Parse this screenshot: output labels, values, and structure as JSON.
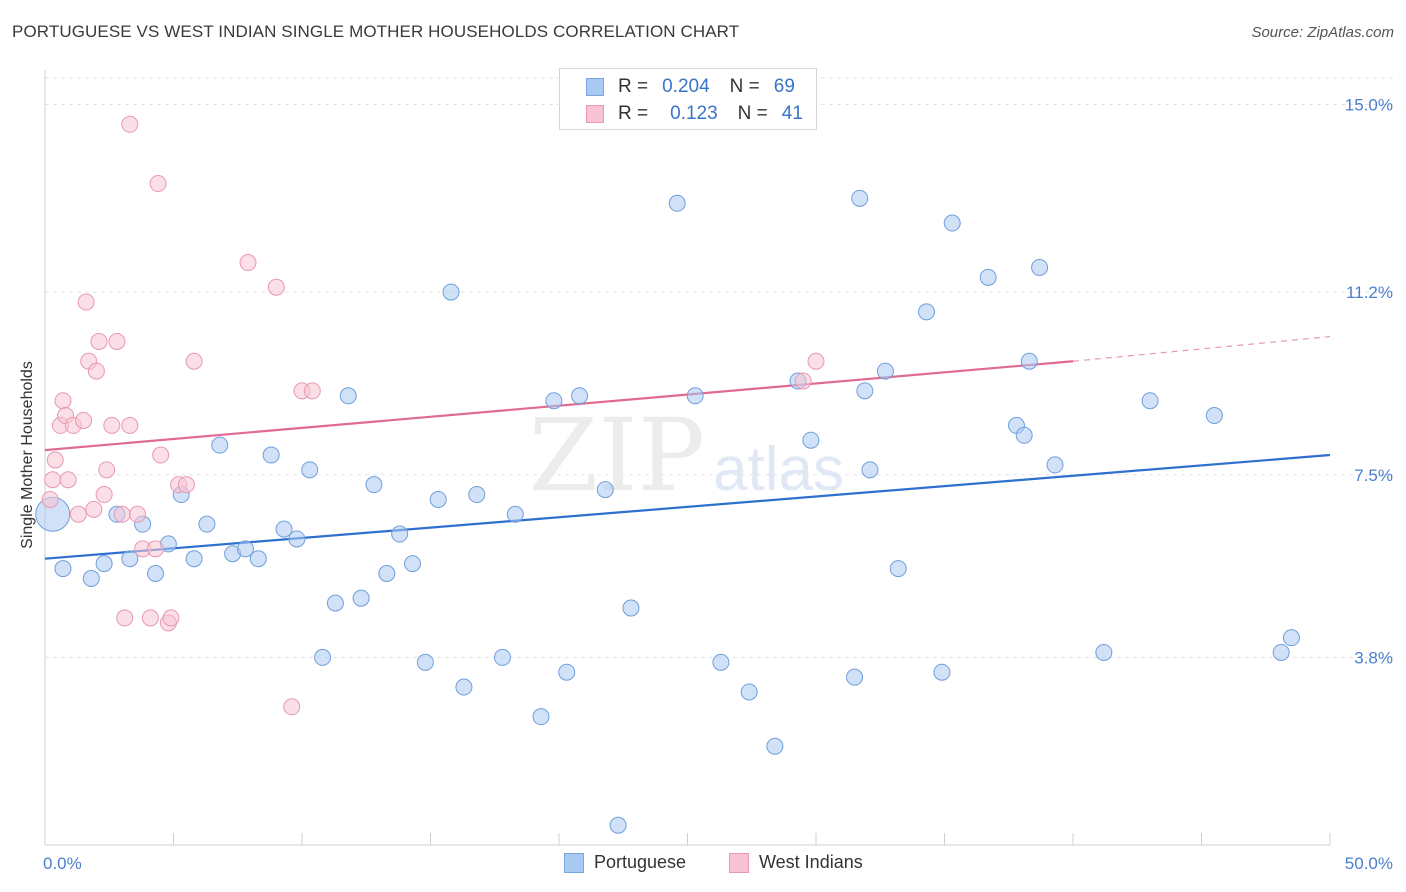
{
  "header": {
    "title": "PORTUGUESE VS WEST INDIAN SINGLE MOTHER HOUSEHOLDS CORRELATION CHART",
    "source": "Source: ZipAtlas.com"
  },
  "watermark": {
    "zip": "ZIP",
    "atlas": "atlas"
  },
  "legend": {
    "rows": [
      {
        "r_label": "R =",
        "r_value": "0.204",
        "n_label": "N =",
        "n_value": "69",
        "color": "#a9c8f2",
        "border": "#7aa6e0"
      },
      {
        "r_label": "R =",
        "r_value": "0.123",
        "n_label": "N =",
        "n_value": "41",
        "color": "#f8c4d3",
        "border": "#e898b0"
      }
    ]
  },
  "bottom_legend": {
    "items": [
      {
        "label": "Portuguese",
        "color": "#a9c8f2",
        "border": "#7aa6e0"
      },
      {
        "label": "West Indians",
        "color": "#f8c4d3",
        "border": "#e898b0"
      }
    ]
  },
  "chart_data": {
    "type": "scatter",
    "title": "PORTUGUESE VS WEST INDIAN SINGLE MOTHER HOUSEHOLDS CORRELATION CHART",
    "xlabel": "",
    "ylabel": "Single Mother Households",
    "xlim": [
      0,
      50
    ],
    "ylim": [
      0,
      15.7
    ],
    "x_tick_labels": [
      "0.0%",
      "50.0%"
    ],
    "y_ticks": [
      3.8,
      7.5,
      11.2,
      15.0
    ],
    "y_tick_labels": [
      "3.8%",
      "7.5%",
      "11.2%",
      "15.0%"
    ],
    "grid": true,
    "legend_position": "top-center",
    "series": [
      {
        "name": "Portuguese",
        "color": "#a9c8f2",
        "stroke": "#6f9fdc",
        "line_color": "#2f6fce",
        "trend": {
          "x": [
            0,
            50
          ],
          "y": [
            5.8,
            7.9
          ]
        },
        "points": [
          [
            0.3,
            6.7,
            "big"
          ],
          [
            0.7,
            5.6
          ],
          [
            1.8,
            5.4
          ],
          [
            2.3,
            5.7
          ],
          [
            2.8,
            6.7
          ],
          [
            3.3,
            5.8
          ],
          [
            3.8,
            6.5
          ],
          [
            4.3,
            5.5
          ],
          [
            4.8,
            6.1
          ],
          [
            5.3,
            7.1
          ],
          [
            5.8,
            5.8
          ],
          [
            6.3,
            6.5
          ],
          [
            6.8,
            8.1
          ],
          [
            7.3,
            5.9
          ],
          [
            7.8,
            6.0
          ],
          [
            8.3,
            5.8
          ],
          [
            8.8,
            7.9
          ],
          [
            9.3,
            6.4
          ],
          [
            9.8,
            6.2
          ],
          [
            10.3,
            7.6
          ],
          [
            10.8,
            3.8
          ],
          [
            11.3,
            4.9
          ],
          [
            11.8,
            9.1
          ],
          [
            12.3,
            5.0
          ],
          [
            12.8,
            7.3
          ],
          [
            13.3,
            5.5
          ],
          [
            13.8,
            6.3
          ],
          [
            14.3,
            5.7
          ],
          [
            14.8,
            3.7
          ],
          [
            15.3,
            7.0
          ],
          [
            15.8,
            11.2
          ],
          [
            16.3,
            3.2
          ],
          [
            16.8,
            7.1
          ],
          [
            17.8,
            3.8
          ],
          [
            18.3,
            6.7
          ],
          [
            19.3,
            2.6
          ],
          [
            19.8,
            9.0
          ],
          [
            20.3,
            3.5
          ],
          [
            20.8,
            9.1
          ],
          [
            21.8,
            7.2
          ],
          [
            22.3,
            0.4
          ],
          [
            22.8,
            4.8
          ],
          [
            24.6,
            13.0
          ],
          [
            25.3,
            9.1
          ],
          [
            26.3,
            3.7
          ],
          [
            27.4,
            3.1
          ],
          [
            28.4,
            2.0
          ],
          [
            29.3,
            9.4
          ],
          [
            29.8,
            8.2
          ],
          [
            31.5,
            3.4
          ],
          [
            31.7,
            13.1
          ],
          [
            31.9,
            9.2
          ],
          [
            32.1,
            7.6
          ],
          [
            32.7,
            9.6
          ],
          [
            33.2,
            5.6
          ],
          [
            34.3,
            10.8
          ],
          [
            34.9,
            3.5
          ],
          [
            35.3,
            12.6
          ],
          [
            36.7,
            11.5
          ],
          [
            37.8,
            8.5
          ],
          [
            38.1,
            8.3
          ],
          [
            38.3,
            9.8
          ],
          [
            38.7,
            11.7
          ],
          [
            39.3,
            7.7
          ],
          [
            41.2,
            3.9
          ],
          [
            43.0,
            9.0
          ],
          [
            48.1,
            3.9
          ],
          [
            48.5,
            4.2
          ],
          [
            45.5,
            8.7
          ]
        ]
      },
      {
        "name": "West Indians",
        "color": "#f8c4d3",
        "stroke": "#e898b0",
        "line_color": "#e06a93",
        "trend": {
          "x": [
            0,
            40
          ],
          "y": [
            8.0,
            9.8
          ]
        },
        "trend_dashed": {
          "x": [
            40,
            50
          ],
          "y": [
            9.8,
            10.3
          ]
        },
        "points": [
          [
            0.2,
            7.0
          ],
          [
            0.3,
            7.4
          ],
          [
            0.4,
            7.8
          ],
          [
            0.6,
            8.5
          ],
          [
            0.7,
            9.0
          ],
          [
            0.8,
            8.7
          ],
          [
            0.9,
            7.4
          ],
          [
            1.1,
            8.5
          ],
          [
            1.3,
            6.7
          ],
          [
            1.5,
            8.6
          ],
          [
            1.6,
            11.0
          ],
          [
            1.7,
            9.8
          ],
          [
            1.9,
            6.8
          ],
          [
            2.0,
            9.6
          ],
          [
            2.1,
            10.2
          ],
          [
            2.3,
            7.1
          ],
          [
            2.4,
            7.6
          ],
          [
            2.6,
            8.5
          ],
          [
            2.8,
            10.2
          ],
          [
            3.0,
            6.7
          ],
          [
            3.1,
            4.6
          ],
          [
            3.3,
            8.5
          ],
          [
            3.6,
            6.7
          ],
          [
            3.8,
            6.0
          ],
          [
            4.1,
            4.6
          ],
          [
            4.3,
            6.0
          ],
          [
            4.5,
            7.9
          ],
          [
            4.8,
            4.5
          ],
          [
            4.9,
            4.6
          ],
          [
            5.2,
            7.3
          ],
          [
            5.5,
            7.3
          ],
          [
            5.8,
            9.8
          ],
          [
            7.9,
            11.8
          ],
          [
            9.0,
            11.3
          ],
          [
            9.6,
            2.8
          ],
          [
            10.0,
            9.2
          ],
          [
            3.3,
            14.6
          ],
          [
            4.4,
            13.4
          ],
          [
            29.5,
            9.4
          ],
          [
            30.0,
            9.8
          ],
          [
            10.4,
            9.2
          ]
        ]
      }
    ]
  }
}
